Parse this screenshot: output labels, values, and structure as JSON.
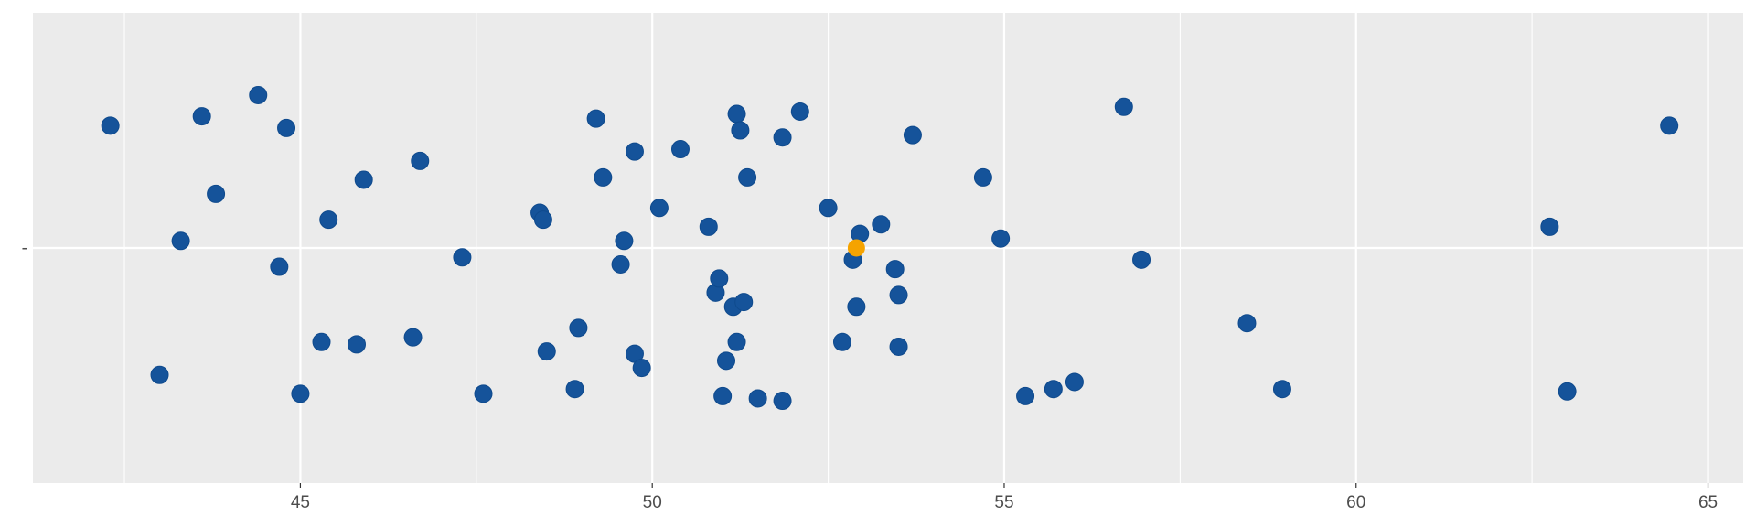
{
  "chart_data": {
    "type": "scatter",
    "title": "",
    "xlabel": "",
    "ylabel": "",
    "xlim": [
      41.2,
      65.5
    ],
    "ylim": [
      -1,
      1
    ],
    "x_ticks": [
      45,
      50,
      55,
      60,
      65
    ],
    "x_tick_labels": [
      "45",
      "50",
      "55",
      "60",
      "65"
    ],
    "x_minor_ticks": [
      42.5,
      47.5,
      52.5,
      57.5,
      62.5
    ],
    "y_ticks": [
      0
    ],
    "y_tick_labels": [
      "-"
    ],
    "grid": true,
    "legend": "none",
    "colors": {
      "panel": "#ebebeb",
      "grid": "#ffffff",
      "point": "#15539a",
      "highlight": "#f5a300",
      "tick_text": "#4d4d4d"
    },
    "series": [
      {
        "points": [
          {
            "x": 42.3,
            "y": 0.52
          },
          {
            "x": 43.6,
            "y": 0.56
          },
          {
            "x": 44.4,
            "y": 0.65
          },
          {
            "x": 44.8,
            "y": 0.51
          },
          {
            "x": 43.8,
            "y": 0.23
          },
          {
            "x": 43.3,
            "y": 0.03
          },
          {
            "x": 44.7,
            "y": -0.08
          },
          {
            "x": 43.0,
            "y": -0.54
          },
          {
            "x": 45.0,
            "y": -0.62
          },
          {
            "x": 45.4,
            "y": 0.12
          },
          {
            "x": 45.9,
            "y": 0.29
          },
          {
            "x": 46.7,
            "y": 0.37
          },
          {
            "x": 45.3,
            "y": -0.4
          },
          {
            "x": 45.8,
            "y": -0.41
          },
          {
            "x": 46.6,
            "y": -0.38
          },
          {
            "x": 47.3,
            "y": -0.04
          },
          {
            "x": 47.6,
            "y": -0.62
          },
          {
            "x": 48.4,
            "y": 0.15
          },
          {
            "x": 48.45,
            "y": 0.12
          },
          {
            "x": 48.5,
            "y": -0.44
          },
          {
            "x": 48.9,
            "y": -0.6
          },
          {
            "x": 48.95,
            "y": -0.34
          },
          {
            "x": 49.2,
            "y": 0.55
          },
          {
            "x": 49.3,
            "y": 0.3
          },
          {
            "x": 49.55,
            "y": -0.07
          },
          {
            "x": 49.6,
            "y": 0.03
          },
          {
            "x": 49.75,
            "y": 0.41
          },
          {
            "x": 49.75,
            "y": -0.45
          },
          {
            "x": 49.85,
            "y": -0.51
          },
          {
            "x": 50.1,
            "y": 0.17
          },
          {
            "x": 50.4,
            "y": 0.42
          },
          {
            "x": 50.8,
            "y": 0.09
          },
          {
            "x": 50.9,
            "y": -0.19
          },
          {
            "x": 50.95,
            "y": -0.13
          },
          {
            "x": 51.0,
            "y": -0.63
          },
          {
            "x": 51.05,
            "y": -0.48
          },
          {
            "x": 51.15,
            "y": -0.25
          },
          {
            "x": 51.2,
            "y": -0.4
          },
          {
            "x": 51.2,
            "y": 0.57
          },
          {
            "x": 51.25,
            "y": 0.5
          },
          {
            "x": 51.3,
            "y": -0.23
          },
          {
            "x": 51.35,
            "y": 0.3
          },
          {
            "x": 51.5,
            "y": -0.64
          },
          {
            "x": 51.85,
            "y": 0.47
          },
          {
            "x": 51.85,
            "y": -0.65
          },
          {
            "x": 52.1,
            "y": 0.58
          },
          {
            "x": 52.5,
            "y": 0.17
          },
          {
            "x": 52.7,
            "y": -0.4
          },
          {
            "x": 52.85,
            "y": -0.05
          },
          {
            "x": 52.9,
            "y": -0.25
          },
          {
            "x": 52.95,
            "y": 0.06
          },
          {
            "x": 53.25,
            "y": 0.1
          },
          {
            "x": 53.45,
            "y": -0.09
          },
          {
            "x": 53.5,
            "y": -0.2
          },
          {
            "x": 53.5,
            "y": -0.42
          },
          {
            "x": 53.7,
            "y": 0.48
          },
          {
            "x": 54.7,
            "y": 0.3
          },
          {
            "x": 54.95,
            "y": 0.04
          },
          {
            "x": 55.3,
            "y": -0.63
          },
          {
            "x": 55.7,
            "y": -0.6
          },
          {
            "x": 56.0,
            "y": -0.57
          },
          {
            "x": 56.7,
            "y": 0.6
          },
          {
            "x": 56.95,
            "y": -0.05
          },
          {
            "x": 58.45,
            "y": -0.32
          },
          {
            "x": 58.95,
            "y": -0.6
          },
          {
            "x": 62.75,
            "y": 0.09
          },
          {
            "x": 63.0,
            "y": -0.61
          },
          {
            "x": 64.45,
            "y": 0.52
          }
        ]
      },
      {
        "points": [
          {
            "x": 52.9,
            "y": 0.0
          }
        ]
      }
    ]
  }
}
